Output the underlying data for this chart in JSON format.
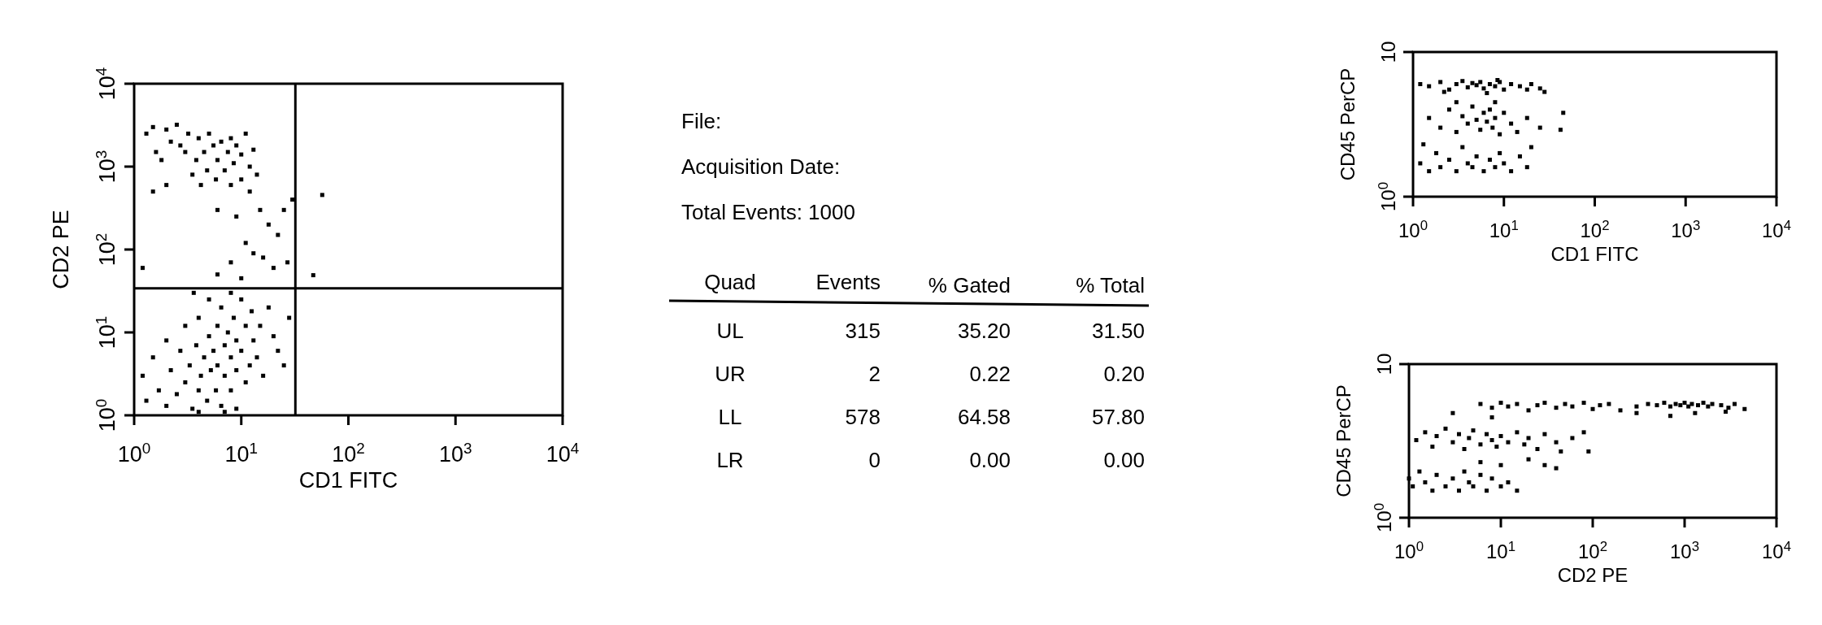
{
  "chart_data": [
    {
      "type": "scatter",
      "xlabel": "CD1 FITC",
      "ylabel": "CD2 PE",
      "log": "xy",
      "marker": "square",
      "xlim": [
        1,
        10000
      ],
      "ylim": [
        1,
        10000
      ],
      "xticks": [
        {
          "value": 1,
          "label": "10$^{0}$"
        },
        {
          "value": 10,
          "label": "10$^{1}$"
        },
        {
          "value": 100,
          "label": "10$^{2}$"
        },
        {
          "value": 1000,
          "label": "10$^{3}$"
        },
        {
          "value": 10000,
          "label": "10$^{4}$"
        }
      ],
      "yticks": [
        {
          "value": 1,
          "label": "10$^{0}$"
        },
        {
          "value": 10,
          "label": "10$^{1}$"
        },
        {
          "value": 100,
          "label": "10$^{2}$"
        },
        {
          "value": 1000,
          "label": "10$^{3}$"
        },
        {
          "value": 10000,
          "label": "10$^{4}$"
        }
      ],
      "ref_lines": [
        {
          "axis": "x",
          "value": 32,
          "color": "#000000"
        },
        {
          "axis": "y",
          "value": 34,
          "color": "#000000"
        }
      ],
      "series": [
        {
          "color": "#000000",
          "x": [
            1.3,
            1.5,
            1.6,
            1.8,
            2,
            2.2,
            2.5,
            2.7,
            3,
            3.2,
            3.5,
            3.8,
            4,
            4.2,
            4.5,
            4.8,
            5,
            5.5,
            5.8,
            6,
            6.5,
            7,
            7.5,
            8,
            8,
            8.5,
            9,
            10,
            10,
            11,
            12,
            12,
            13,
            14,
            15,
            6,
            9,
            18,
            22,
            25,
            30,
            1.5,
            2,
            11,
            13,
            16,
            20,
            8,
            6,
            10,
            1.2,
            27,
            57,
            47,
            1.2,
            1.3,
            1.5,
            1.7,
            2,
            2,
            2.2,
            2.5,
            2.7,
            3,
            3,
            3.3,
            3.5,
            3.8,
            4,
            4,
            4.2,
            4.5,
            4.8,
            5,
            5,
            5.2,
            5.5,
            5.8,
            6,
            6,
            6.5,
            6.5,
            7,
            7,
            7.5,
            8,
            8,
            8.5,
            9,
            9,
            10,
            10,
            11,
            11,
            12,
            12.5,
            13,
            14,
            15,
            16,
            18,
            20,
            22,
            28,
            25,
            4,
            7,
            9,
            3.6,
            8
          ],
          "values": [
            2500,
            3000,
            1500,
            1200,
            2800,
            2000,
            3200,
            1800,
            1500,
            2500,
            800,
            1200,
            2200,
            600,
            1500,
            900,
            2500,
            1800,
            700,
            1200,
            2000,
            900,
            1500,
            600,
            2200,
            1100,
            1800,
            700,
            1400,
            2500,
            1000,
            500,
            1600,
            800,
            300,
            300,
            250,
            200,
            150,
            300,
            400,
            500,
            600,
            120,
            90,
            80,
            60,
            70,
            50,
            45,
            60,
            70,
            455,
            49,
            3,
            1.5,
            5,
            2,
            8,
            1.3,
            3.5,
            1.8,
            6,
            2.5,
            12,
            4,
            1.2,
            7,
            2,
            15,
            3,
            5,
            1.5,
            9,
            25,
            3.5,
            6,
            2,
            12,
            4,
            1.3,
            20,
            7,
            3,
            10,
            5,
            2,
            15,
            8,
            3.5,
            25,
            6,
            12,
            2.5,
            4,
            18,
            8,
            5,
            12,
            3,
            20,
            9,
            6,
            15,
            4,
            1.1,
            1.1,
            1.2,
            30,
            30
          ]
        }
      ]
    },
    {
      "type": "other",
      "data_labels": true,
      "annotations": [
        "File:",
        "Acquisition Date:",
        "Total Events: 1000"
      ],
      "ylabel": "Quad",
      "categories": [
        "UL",
        "UR",
        "LL",
        "LR"
      ],
      "series": [
        {
          "name": "Events",
          "values": [
            315,
            2,
            578,
            0
          ]
        },
        {
          "name": "% Gated",
          "values": [
            35.2,
            0.22,
            64.58,
            0
          ],
          "value_labels": [
            "35.20",
            "0.22",
            "64.58",
            "0.00"
          ]
        },
        {
          "name": "% Total",
          "values": [
            31.5,
            0.2,
            57.8,
            0
          ],
          "value_labels": [
            "31.50",
            "0.20",
            "57.80",
            "0.00"
          ]
        }
      ]
    },
    {
      "type": "scatter",
      "xlabel": "CD1 FITC",
      "ylabel": "CD45 PerCP",
      "log": "xy",
      "marker": "square",
      "xlim": [
        1,
        10000
      ],
      "ylim": [
        1,
        10
      ],
      "xticks": [
        {
          "value": 1,
          "label": "10$^{0}$"
        },
        {
          "value": 10,
          "label": "10$^{1}$"
        },
        {
          "value": 100,
          "label": "10$^{2}$"
        },
        {
          "value": 1000,
          "label": "10$^{3}$"
        },
        {
          "value": 10000,
          "label": "10$^{4}$"
        }
      ],
      "yticks": [
        {
          "value": 1,
          "label": "10$^{0}$"
        },
        10
      ],
      "series": [
        {
          "color": "#000000",
          "x": [
            1.2,
            1.5,
            2,
            2.5,
            3,
            3.5,
            4,
            4.5,
            5,
            5.5,
            6,
            7,
            8,
            9,
            10,
            12,
            15,
            18,
            20,
            25,
            2.2,
            6.5,
            8.5,
            28,
            1.5,
            2,
            2.5,
            3,
            3.5,
            4,
            4.5,
            5,
            5.5,
            6,
            6.5,
            7,
            7.5,
            8,
            9,
            10,
            12,
            14,
            18,
            25,
            3,
            8,
            45,
            42,
            1.2,
            1.5,
            1.8,
            2,
            2.5,
            3,
            3.5,
            4,
            4.5,
            5,
            6,
            7,
            8,
            9,
            10,
            12,
            15,
            18,
            1.3,
            20
          ],
          "values": [
            6,
            5.8,
            6.2,
            5.5,
            6,
            6.3,
            5.7,
            6.1,
            5.9,
            6.2,
            5.6,
            6,
            5.8,
            6.2,
            5.5,
            6,
            5.8,
            5.5,
            6,
            5.6,
            5.3,
            5.2,
            6.4,
            5.3,
            3.5,
            3,
            4,
            2.8,
            3.6,
            3.2,
            4.2,
            3.4,
            2.9,
            3.8,
            3.3,
            4,
            3,
            3.5,
            2.7,
            3.8,
            3.2,
            2.8,
            3.5,
            3,
            4.5,
            4.5,
            3.8,
            2.9,
            1.7,
            1.5,
            2,
            1.6,
            1.8,
            1.5,
            2.2,
            1.7,
            1.6,
            1.9,
            1.5,
            1.8,
            1.6,
            2,
            1.7,
            1.5,
            1.9,
            1.6,
            2.3,
            2.2
          ]
        }
      ]
    },
    {
      "type": "scatter",
      "xlabel": "CD2 PE",
      "ylabel": "CD45 PerCP",
      "log": "xy",
      "marker": "square",
      "xlim": [
        1,
        10000
      ],
      "ylim": [
        1,
        10
      ],
      "xticks": [
        {
          "value": 1,
          "label": "10$^{0}$"
        },
        {
          "value": 10,
          "label": "10$^{1}$"
        },
        {
          "value": 100,
          "label": "10$^{2}$"
        },
        {
          "value": 1000,
          "label": "10$^{3}$"
        },
        {
          "value": 10000,
          "label": "10$^{4}$"
        }
      ],
      "yticks": [
        {
          "value": 1,
          "label": "10$^{0}$"
        },
        10
      ],
      "series": [
        {
          "color": "#000000",
          "x": [
            6,
            8,
            10,
            12,
            15,
            20,
            25,
            30,
            40,
            50,
            60,
            80,
            100,
            120,
            150,
            200,
            300,
            400,
            500,
            600,
            700,
            800,
            900,
            1000,
            1100,
            1200,
            1400,
            1600,
            1800,
            2000,
            2500,
            3000,
            3500,
            4500,
            1300,
            2800,
            700,
            300,
            8,
            3,
            1.2,
            1.5,
            1.8,
            2,
            2.5,
            3,
            3.5,
            4,
            4.5,
            5,
            6,
            7,
            8,
            9,
            10,
            12,
            15,
            18,
            20,
            25,
            30,
            40,
            45,
            60,
            80,
            90,
            20,
            30,
            40,
            1,
            1.1,
            1.3,
            1.5,
            1.8,
            2,
            2.5,
            3,
            3.5,
            4,
            4.5,
            5,
            6,
            7,
            8,
            10,
            12,
            15,
            10,
            6
          ],
          "values": [
            5.5,
            5.2,
            5.6,
            5.3,
            5.5,
            5,
            5.4,
            5.6,
            5.2,
            5.5,
            5.3,
            5.6,
            5.1,
            5.4,
            5.5,
            5,
            5.3,
            5.5,
            5.4,
            5.6,
            5.3,
            5.5,
            5.4,
            5.6,
            5.3,
            5.5,
            5.4,
            5.6,
            5.3,
            5.5,
            5.4,
            5.2,
            5.5,
            5.1,
            4.8,
            4.9,
            4.6,
            4.8,
            4.5,
            4.8,
            3.2,
            3.6,
            2.9,
            3.4,
            3.8,
            3.1,
            3.5,
            2.8,
            3.3,
            3.7,
            3,
            3.5,
            3.2,
            2.9,
            3.4,
            3.1,
            3.6,
            3,
            3.3,
            2.8,
            3.5,
            3.1,
            2.7,
            3.3,
            3.6,
            2.7,
            2.4,
            2.2,
            2.1,
            1.8,
            1.6,
            2,
            1.7,
            1.5,
            1.9,
            1.6,
            1.8,
            1.5,
            2,
            1.7,
            1.6,
            1.9,
            1.5,
            1.8,
            1.6,
            1.7,
            1.5,
            2.2,
            2.3
          ]
        }
      ]
    }
  ]
}
